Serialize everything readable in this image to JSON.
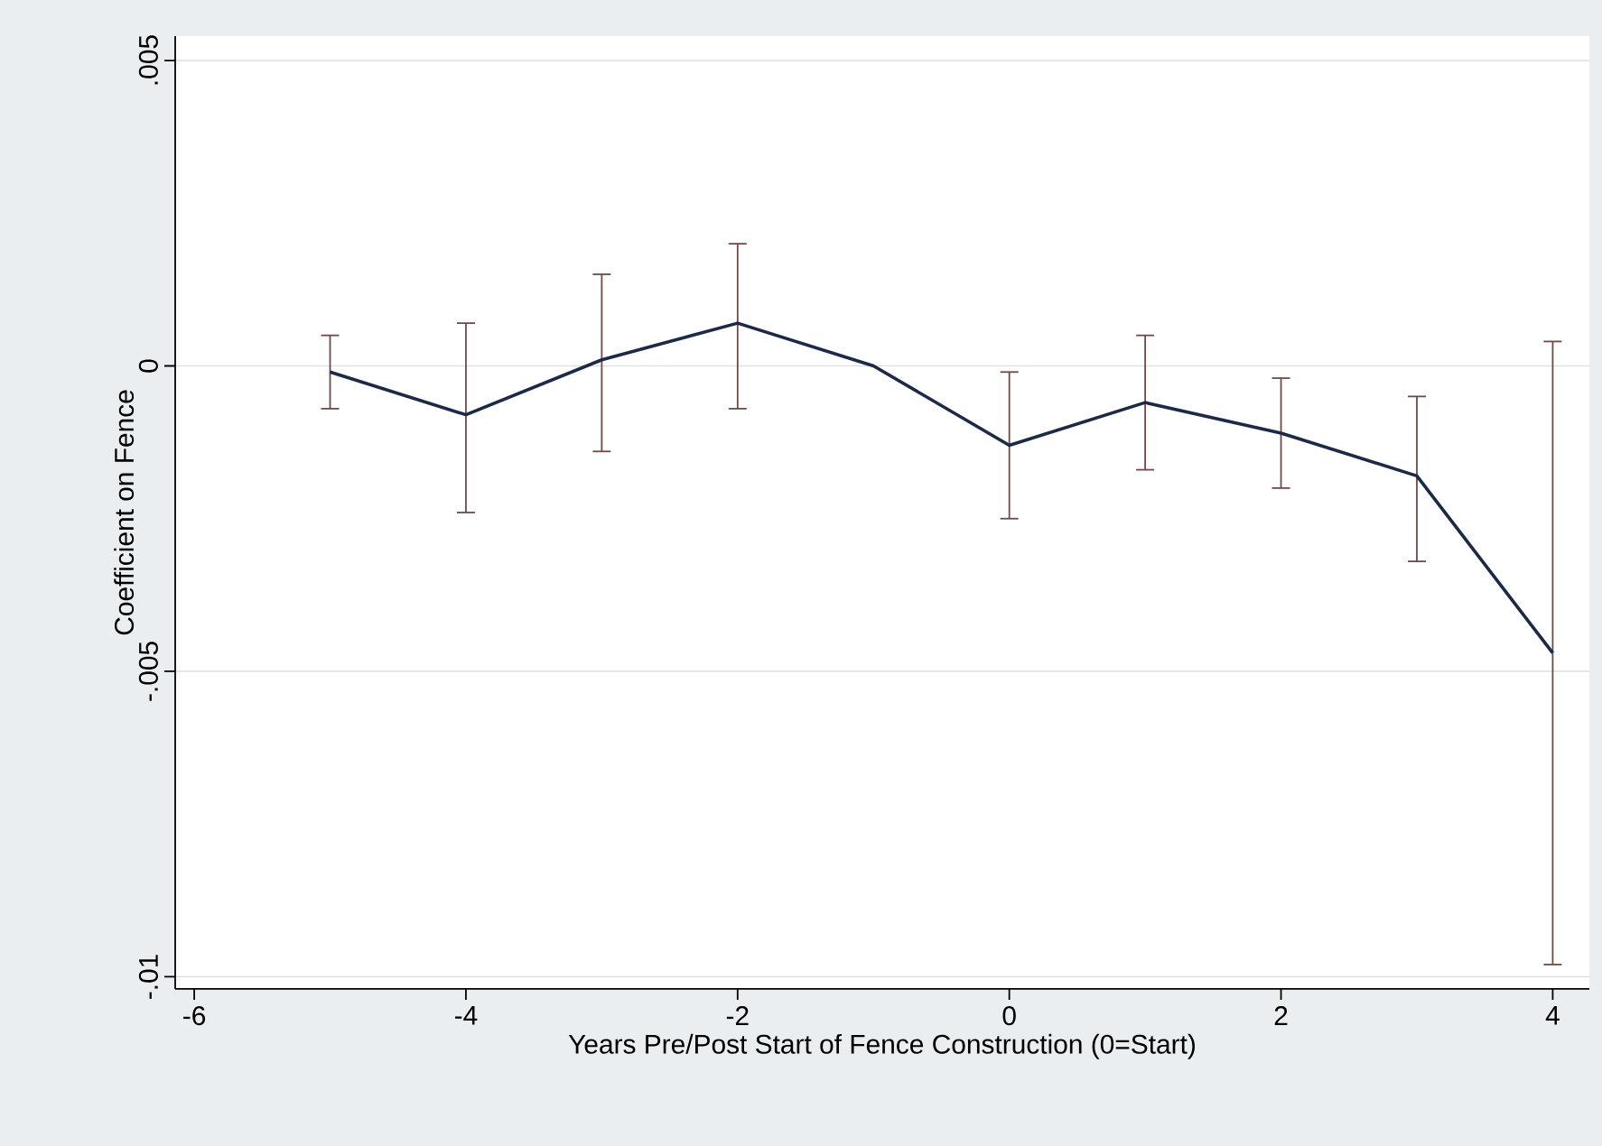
{
  "chart_data": {
    "type": "line",
    "xlabel": "Years Pre/Post Start of Fence Construction (0=Start)",
    "ylabel": "Coefficient on Fence",
    "x": [
      -5,
      -4,
      -3,
      -2,
      -1,
      0,
      1,
      2,
      3,
      4
    ],
    "series": [
      {
        "color": "#1c2a48",
        "values": [
          -0.0001,
          -0.0008,
          0.0001,
          0.0007,
          0.0,
          -0.0013,
          -0.0006,
          -0.0011,
          -0.0018,
          -0.0047
        ],
        "errors": [
          [
            -0.0007,
            0.0005
          ],
          [
            -0.0024,
            0.0007
          ],
          [
            -0.0014,
            0.0015
          ],
          [
            -0.0007,
            0.002
          ],
          null,
          [
            -0.0025,
            -0.0001
          ],
          [
            -0.0017,
            0.0005
          ],
          [
            -0.002,
            -0.0002
          ],
          [
            -0.0032,
            -0.0005
          ],
          [
            -0.0098,
            0.0004
          ]
        ]
      }
    ],
    "xlim": [
      -6.14,
      4.27
    ],
    "ylim": [
      -0.0102,
      0.0054
    ],
    "xticks": [
      -6,
      -4,
      -2,
      0,
      2,
      4
    ],
    "yticks": [
      {
        "value": -0.01,
        "label": "-.01"
      },
      {
        "value": -0.005,
        "label": "-.005"
      },
      {
        "value": 0,
        "label": "0"
      },
      {
        "value": 0.005,
        "label": ".005"
      }
    ],
    "grid": "y",
    "marker": "none",
    "line_style": "solid"
  }
}
